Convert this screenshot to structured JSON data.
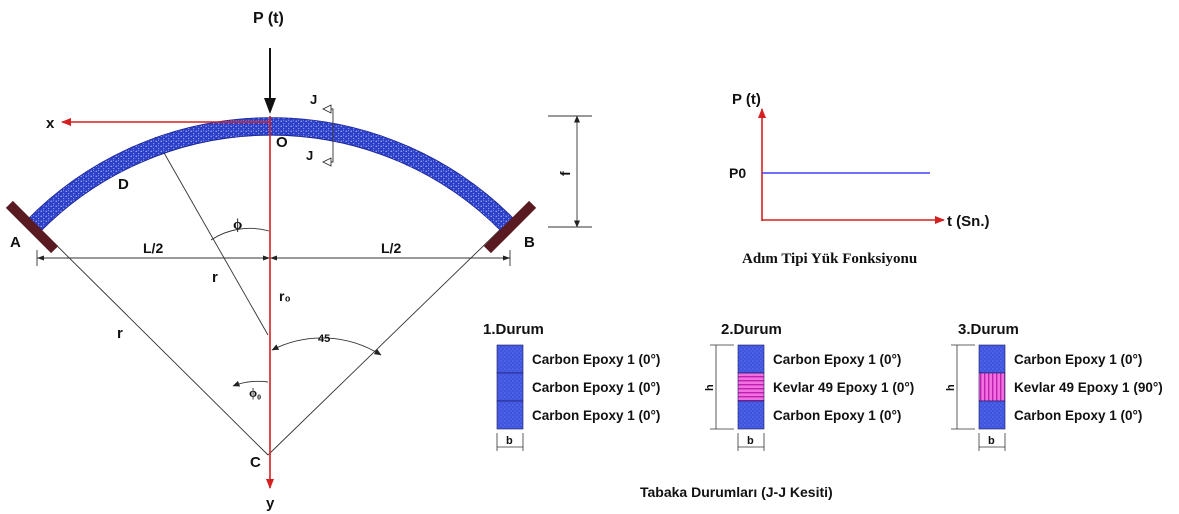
{
  "colors": {
    "arch_fill": "#3a4fd8",
    "red_axis": "#d42020",
    "support": "#5a1a22",
    "load_line": "#4040ff",
    "carbon_layer": "#3f55e0",
    "kevlar_layer": "#e040d0"
  },
  "arch": {
    "load_label": "P (t)",
    "x_label": "x",
    "y_label": "y",
    "point_A": "A",
    "point_B": "B",
    "point_C": "C",
    "point_D": "D",
    "point_O": "O",
    "section_mark_top": "J",
    "section_mark_bottom": "J",
    "half_span_left": "L/2",
    "half_span_right": "L/2",
    "radius_inner": "r",
    "radius_outer": "r",
    "radius_zero": "r₀",
    "rise": "f",
    "angle_phi": "ϕ",
    "angle_phi0": "ϕ₀",
    "angle_45": "45"
  },
  "load_function": {
    "y_label": "P (t)",
    "level_label": "P0",
    "x_label": "t (Sn.)",
    "caption": "Adım Tipi Yük Fonksiyonu"
  },
  "cases": [
    {
      "title": "1.Durum",
      "h_label": "",
      "b_label": "b",
      "layers": [
        {
          "label": "Carbon Epoxy 1 (0°)",
          "material": "carbon"
        },
        {
          "label": "Carbon Epoxy 1 (0°)",
          "material": "carbon"
        },
        {
          "label": "Carbon Epoxy 1 (0°)",
          "material": "carbon"
        }
      ]
    },
    {
      "title": "2.Durum",
      "h_label": "h",
      "b_label": "b",
      "layers": [
        {
          "label": "Carbon Epoxy 1 (0°)",
          "material": "carbon"
        },
        {
          "label": "Kevlar 49 Epoxy 1 (0°)",
          "material": "kevlar-0"
        },
        {
          "label": "Carbon Epoxy 1 (0°)",
          "material": "carbon"
        }
      ]
    },
    {
      "title": "3.Durum",
      "h_label": "h",
      "b_label": "b",
      "layers": [
        {
          "label": "Carbon Epoxy 1 (0°)",
          "material": "carbon"
        },
        {
          "label": "Kevlar 49 Epoxy 1 (90°)",
          "material": "kevlar-90"
        },
        {
          "label": "Carbon Epoxy 1 (0°)",
          "material": "carbon"
        }
      ]
    }
  ],
  "cases_caption": "Tabaka Durumları  (J-J Kesiti)"
}
